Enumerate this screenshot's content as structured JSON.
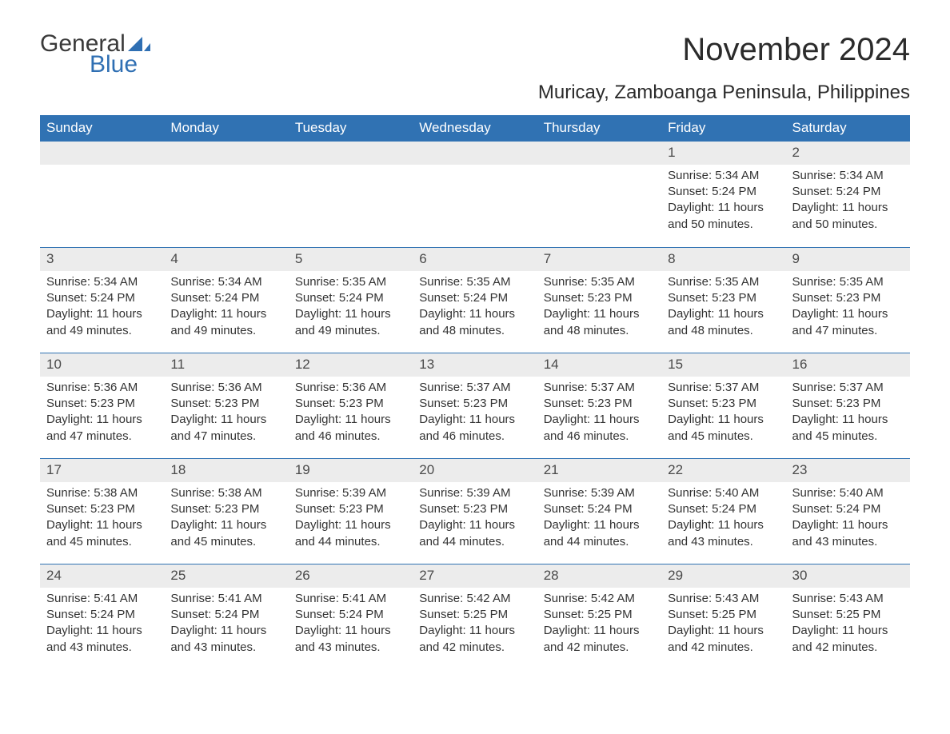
{
  "logo": {
    "word1": "General",
    "word2": "Blue",
    "accent_color": "#2f6fb3"
  },
  "title": "November 2024",
  "subtitle": "Muricay, Zamboanga Peninsula, Philippines",
  "colors": {
    "header_bg": "#3072b3",
    "header_text": "#ffffff",
    "daynum_bg": "#ececec",
    "text": "#333333",
    "rule": "#3072b3"
  },
  "weekdays": [
    "Sunday",
    "Monday",
    "Tuesday",
    "Wednesday",
    "Thursday",
    "Friday",
    "Saturday"
  ],
  "weeks": [
    [
      {
        "empty": true
      },
      {
        "empty": true
      },
      {
        "empty": true
      },
      {
        "empty": true
      },
      {
        "empty": true
      },
      {
        "n": "1",
        "sunrise": "Sunrise: 5:34 AM",
        "sunset": "Sunset: 5:24 PM",
        "dl1": "Daylight: 11 hours",
        "dl2": "and 50 minutes."
      },
      {
        "n": "2",
        "sunrise": "Sunrise: 5:34 AM",
        "sunset": "Sunset: 5:24 PM",
        "dl1": "Daylight: 11 hours",
        "dl2": "and 50 minutes."
      }
    ],
    [
      {
        "n": "3",
        "sunrise": "Sunrise: 5:34 AM",
        "sunset": "Sunset: 5:24 PM",
        "dl1": "Daylight: 11 hours",
        "dl2": "and 49 minutes."
      },
      {
        "n": "4",
        "sunrise": "Sunrise: 5:34 AM",
        "sunset": "Sunset: 5:24 PM",
        "dl1": "Daylight: 11 hours",
        "dl2": "and 49 minutes."
      },
      {
        "n": "5",
        "sunrise": "Sunrise: 5:35 AM",
        "sunset": "Sunset: 5:24 PM",
        "dl1": "Daylight: 11 hours",
        "dl2": "and 49 minutes."
      },
      {
        "n": "6",
        "sunrise": "Sunrise: 5:35 AM",
        "sunset": "Sunset: 5:24 PM",
        "dl1": "Daylight: 11 hours",
        "dl2": "and 48 minutes."
      },
      {
        "n": "7",
        "sunrise": "Sunrise: 5:35 AM",
        "sunset": "Sunset: 5:23 PM",
        "dl1": "Daylight: 11 hours",
        "dl2": "and 48 minutes."
      },
      {
        "n": "8",
        "sunrise": "Sunrise: 5:35 AM",
        "sunset": "Sunset: 5:23 PM",
        "dl1": "Daylight: 11 hours",
        "dl2": "and 48 minutes."
      },
      {
        "n": "9",
        "sunrise": "Sunrise: 5:35 AM",
        "sunset": "Sunset: 5:23 PM",
        "dl1": "Daylight: 11 hours",
        "dl2": "and 47 minutes."
      }
    ],
    [
      {
        "n": "10",
        "sunrise": "Sunrise: 5:36 AM",
        "sunset": "Sunset: 5:23 PM",
        "dl1": "Daylight: 11 hours",
        "dl2": "and 47 minutes."
      },
      {
        "n": "11",
        "sunrise": "Sunrise: 5:36 AM",
        "sunset": "Sunset: 5:23 PM",
        "dl1": "Daylight: 11 hours",
        "dl2": "and 47 minutes."
      },
      {
        "n": "12",
        "sunrise": "Sunrise: 5:36 AM",
        "sunset": "Sunset: 5:23 PM",
        "dl1": "Daylight: 11 hours",
        "dl2": "and 46 minutes."
      },
      {
        "n": "13",
        "sunrise": "Sunrise: 5:37 AM",
        "sunset": "Sunset: 5:23 PM",
        "dl1": "Daylight: 11 hours",
        "dl2": "and 46 minutes."
      },
      {
        "n": "14",
        "sunrise": "Sunrise: 5:37 AM",
        "sunset": "Sunset: 5:23 PM",
        "dl1": "Daylight: 11 hours",
        "dl2": "and 46 minutes."
      },
      {
        "n": "15",
        "sunrise": "Sunrise: 5:37 AM",
        "sunset": "Sunset: 5:23 PM",
        "dl1": "Daylight: 11 hours",
        "dl2": "and 45 minutes."
      },
      {
        "n": "16",
        "sunrise": "Sunrise: 5:37 AM",
        "sunset": "Sunset: 5:23 PM",
        "dl1": "Daylight: 11 hours",
        "dl2": "and 45 minutes."
      }
    ],
    [
      {
        "n": "17",
        "sunrise": "Sunrise: 5:38 AM",
        "sunset": "Sunset: 5:23 PM",
        "dl1": "Daylight: 11 hours",
        "dl2": "and 45 minutes."
      },
      {
        "n": "18",
        "sunrise": "Sunrise: 5:38 AM",
        "sunset": "Sunset: 5:23 PM",
        "dl1": "Daylight: 11 hours",
        "dl2": "and 45 minutes."
      },
      {
        "n": "19",
        "sunrise": "Sunrise: 5:39 AM",
        "sunset": "Sunset: 5:23 PM",
        "dl1": "Daylight: 11 hours",
        "dl2": "and 44 minutes."
      },
      {
        "n": "20",
        "sunrise": "Sunrise: 5:39 AM",
        "sunset": "Sunset: 5:23 PM",
        "dl1": "Daylight: 11 hours",
        "dl2": "and 44 minutes."
      },
      {
        "n": "21",
        "sunrise": "Sunrise: 5:39 AM",
        "sunset": "Sunset: 5:24 PM",
        "dl1": "Daylight: 11 hours",
        "dl2": "and 44 minutes."
      },
      {
        "n": "22",
        "sunrise": "Sunrise: 5:40 AM",
        "sunset": "Sunset: 5:24 PM",
        "dl1": "Daylight: 11 hours",
        "dl2": "and 43 minutes."
      },
      {
        "n": "23",
        "sunrise": "Sunrise: 5:40 AM",
        "sunset": "Sunset: 5:24 PM",
        "dl1": "Daylight: 11 hours",
        "dl2": "and 43 minutes."
      }
    ],
    [
      {
        "n": "24",
        "sunrise": "Sunrise: 5:41 AM",
        "sunset": "Sunset: 5:24 PM",
        "dl1": "Daylight: 11 hours",
        "dl2": "and 43 minutes."
      },
      {
        "n": "25",
        "sunrise": "Sunrise: 5:41 AM",
        "sunset": "Sunset: 5:24 PM",
        "dl1": "Daylight: 11 hours",
        "dl2": "and 43 minutes."
      },
      {
        "n": "26",
        "sunrise": "Sunrise: 5:41 AM",
        "sunset": "Sunset: 5:24 PM",
        "dl1": "Daylight: 11 hours",
        "dl2": "and 43 minutes."
      },
      {
        "n": "27",
        "sunrise": "Sunrise: 5:42 AM",
        "sunset": "Sunset: 5:25 PM",
        "dl1": "Daylight: 11 hours",
        "dl2": "and 42 minutes."
      },
      {
        "n": "28",
        "sunrise": "Sunrise: 5:42 AM",
        "sunset": "Sunset: 5:25 PM",
        "dl1": "Daylight: 11 hours",
        "dl2": "and 42 minutes."
      },
      {
        "n": "29",
        "sunrise": "Sunrise: 5:43 AM",
        "sunset": "Sunset: 5:25 PM",
        "dl1": "Daylight: 11 hours",
        "dl2": "and 42 minutes."
      },
      {
        "n": "30",
        "sunrise": "Sunrise: 5:43 AM",
        "sunset": "Sunset: 5:25 PM",
        "dl1": "Daylight: 11 hours",
        "dl2": "and 42 minutes."
      }
    ]
  ]
}
